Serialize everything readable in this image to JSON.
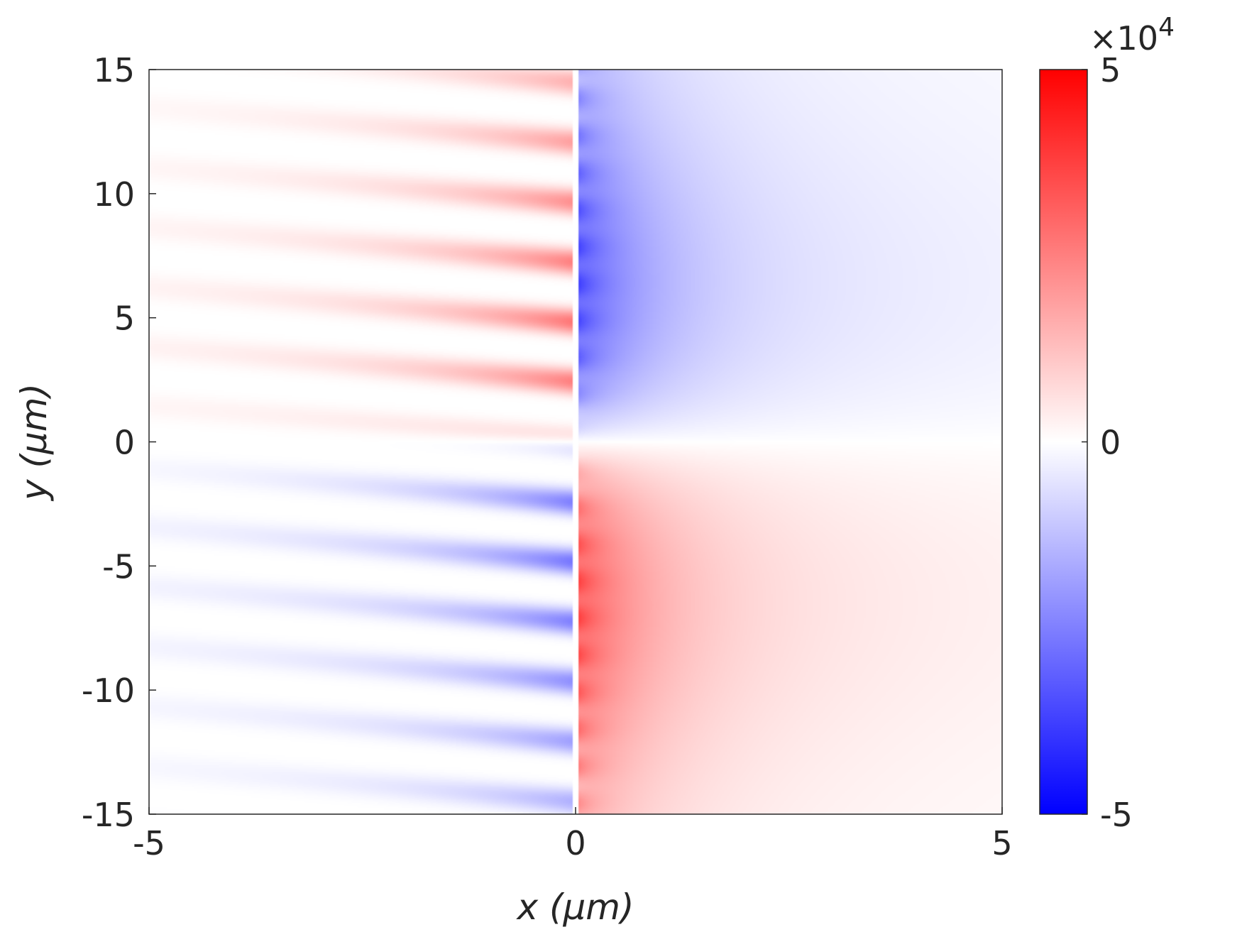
{
  "chart_data": {
    "type": "heatmap",
    "title": "",
    "xlabel": "x (μm)",
    "ylabel": "y (μm)",
    "xlim": [
      -5,
      5
    ],
    "ylim": [
      -15,
      15
    ],
    "x_ticks": [
      -5,
      0,
      5
    ],
    "x_tick_labels": [
      "-5",
      "0",
      "5"
    ],
    "y_ticks": [
      15,
      10,
      5,
      0,
      -5,
      -10,
      -15
    ],
    "y_tick_labels": [
      "15",
      "10",
      "5",
      "0",
      "-5",
      "-10",
      "-15"
    ],
    "grid": false,
    "colorbar": {
      "range": [
        -5,
        5
      ],
      "ticks": [
        5,
        0,
        -5
      ],
      "tick_labels": [
        "5",
        "0",
        "-5"
      ],
      "exponent_label": "×10",
      "exponent_power": "4",
      "colormap": [
        "#0000ff",
        "#ffffff",
        "#ff0000"
      ]
    },
    "field": {
      "interface_x": 0,
      "upper_right_lobe": {
        "x_range": [
          0,
          5
        ],
        "y_range": [
          0,
          15
        ],
        "peak_value": -3.5,
        "peak_at": [
          0.1,
          6
        ]
      },
      "lower_right_lobe": {
        "x_range": [
          0,
          5
        ],
        "y_range": [
          -15,
          0
        ],
        "peak_value": 3.5,
        "peak_at": [
          0.1,
          -6
        ]
      },
      "left_fringes_upper": {
        "x_range": [
          -5,
          0
        ],
        "y_range": [
          0,
          15
        ],
        "sign": "positive",
        "peak_value": 3
      },
      "left_fringes_lower": {
        "x_range": [
          -5,
          0
        ],
        "y_range": [
          -15,
          0
        ],
        "sign": "negative",
        "peak_value": -3
      }
    }
  }
}
